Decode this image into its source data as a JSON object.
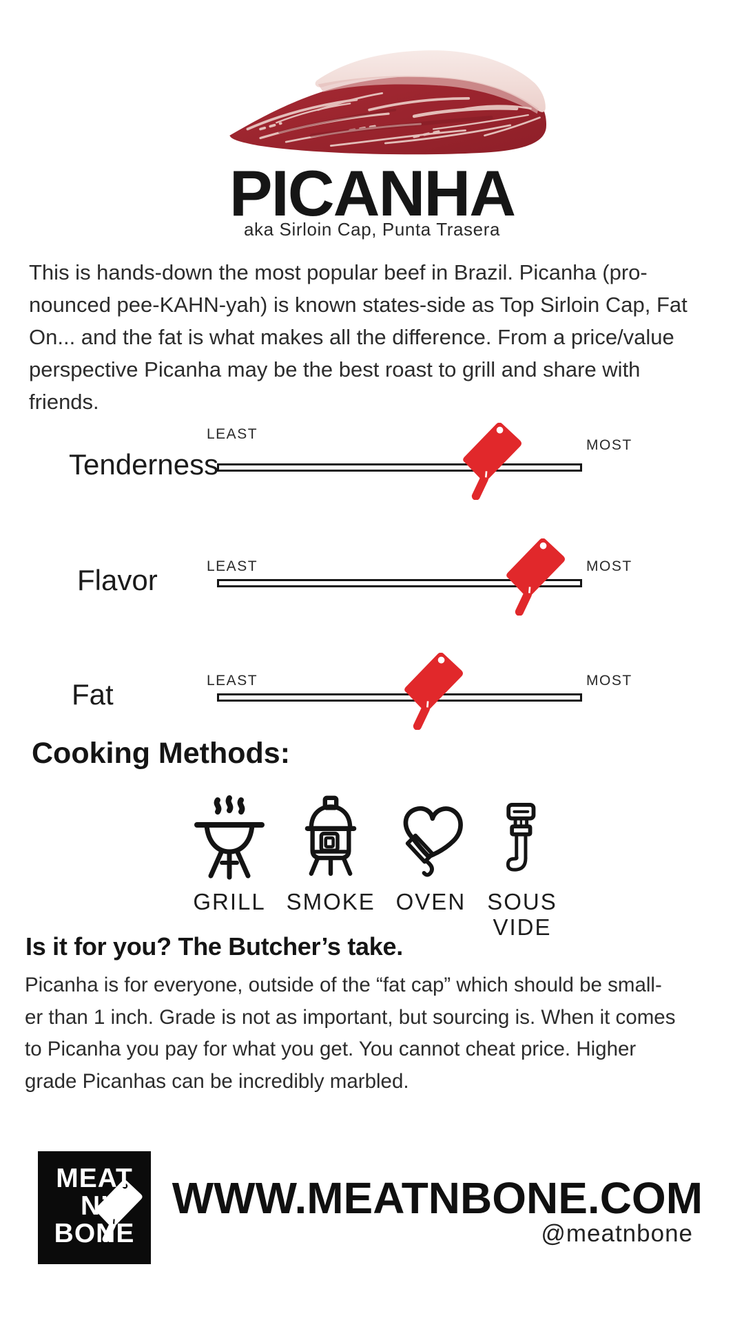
{
  "colors": {
    "accent_red": "#e1282b",
    "ink": "#161616",
    "logo_bg": "#0b0b0b"
  },
  "header": {
    "title": "PICANHA",
    "subtitle": "aka Sirloin Cap, Punta Trasera",
    "image_alt": "marbled picanha steak with white fat cap"
  },
  "intro": {
    "lines": [
      "This is hands-down the most popular beef in Brazil. Picanha (pro-",
      "nounced pee-KAHN-yah) is known states-side as Top Sirloin Cap, Fat",
      "On... and the fat is what makes all the difference. From a price/value",
      "perspective Picanha may be the best roast to grill and share with",
      "friends."
    ]
  },
  "scales": {
    "least_label": "LEAST",
    "most_label": "MOST",
    "items": [
      {
        "name": "Tenderness",
        "value": 0.75
      },
      {
        "name": "Flavor",
        "value": 0.87
      },
      {
        "name": "Fat",
        "value": 0.59
      }
    ]
  },
  "cooking": {
    "heading": "Cooking Methods:",
    "methods": [
      {
        "label": "GRILL",
        "icon": "grill-icon"
      },
      {
        "label": "SMOKE",
        "icon": "smoker-icon"
      },
      {
        "label": "OVEN",
        "icon": "oven-mitt-icon"
      },
      {
        "label": "SOUS VIDE",
        "icon": "sous-vide-icon"
      }
    ]
  },
  "butchers_take": {
    "heading": "Is it for you? The Butcher’s take.",
    "lines": [
      "Picanha is for everyone, outside of the “fat cap” which should be small-",
      "er than 1 inch. Grade is not as important, but sourcing is. When it comes",
      "to Picanha you pay for what you get. You cannot cheat price. Higher",
      "grade Picanhas can be incredibly marbled."
    ]
  },
  "footer": {
    "logo_lines": [
      "MEAT",
      "N’",
      "BONE"
    ],
    "website": "WWW.MEATNBONE.COM",
    "social_handle": "@meatnbone"
  }
}
